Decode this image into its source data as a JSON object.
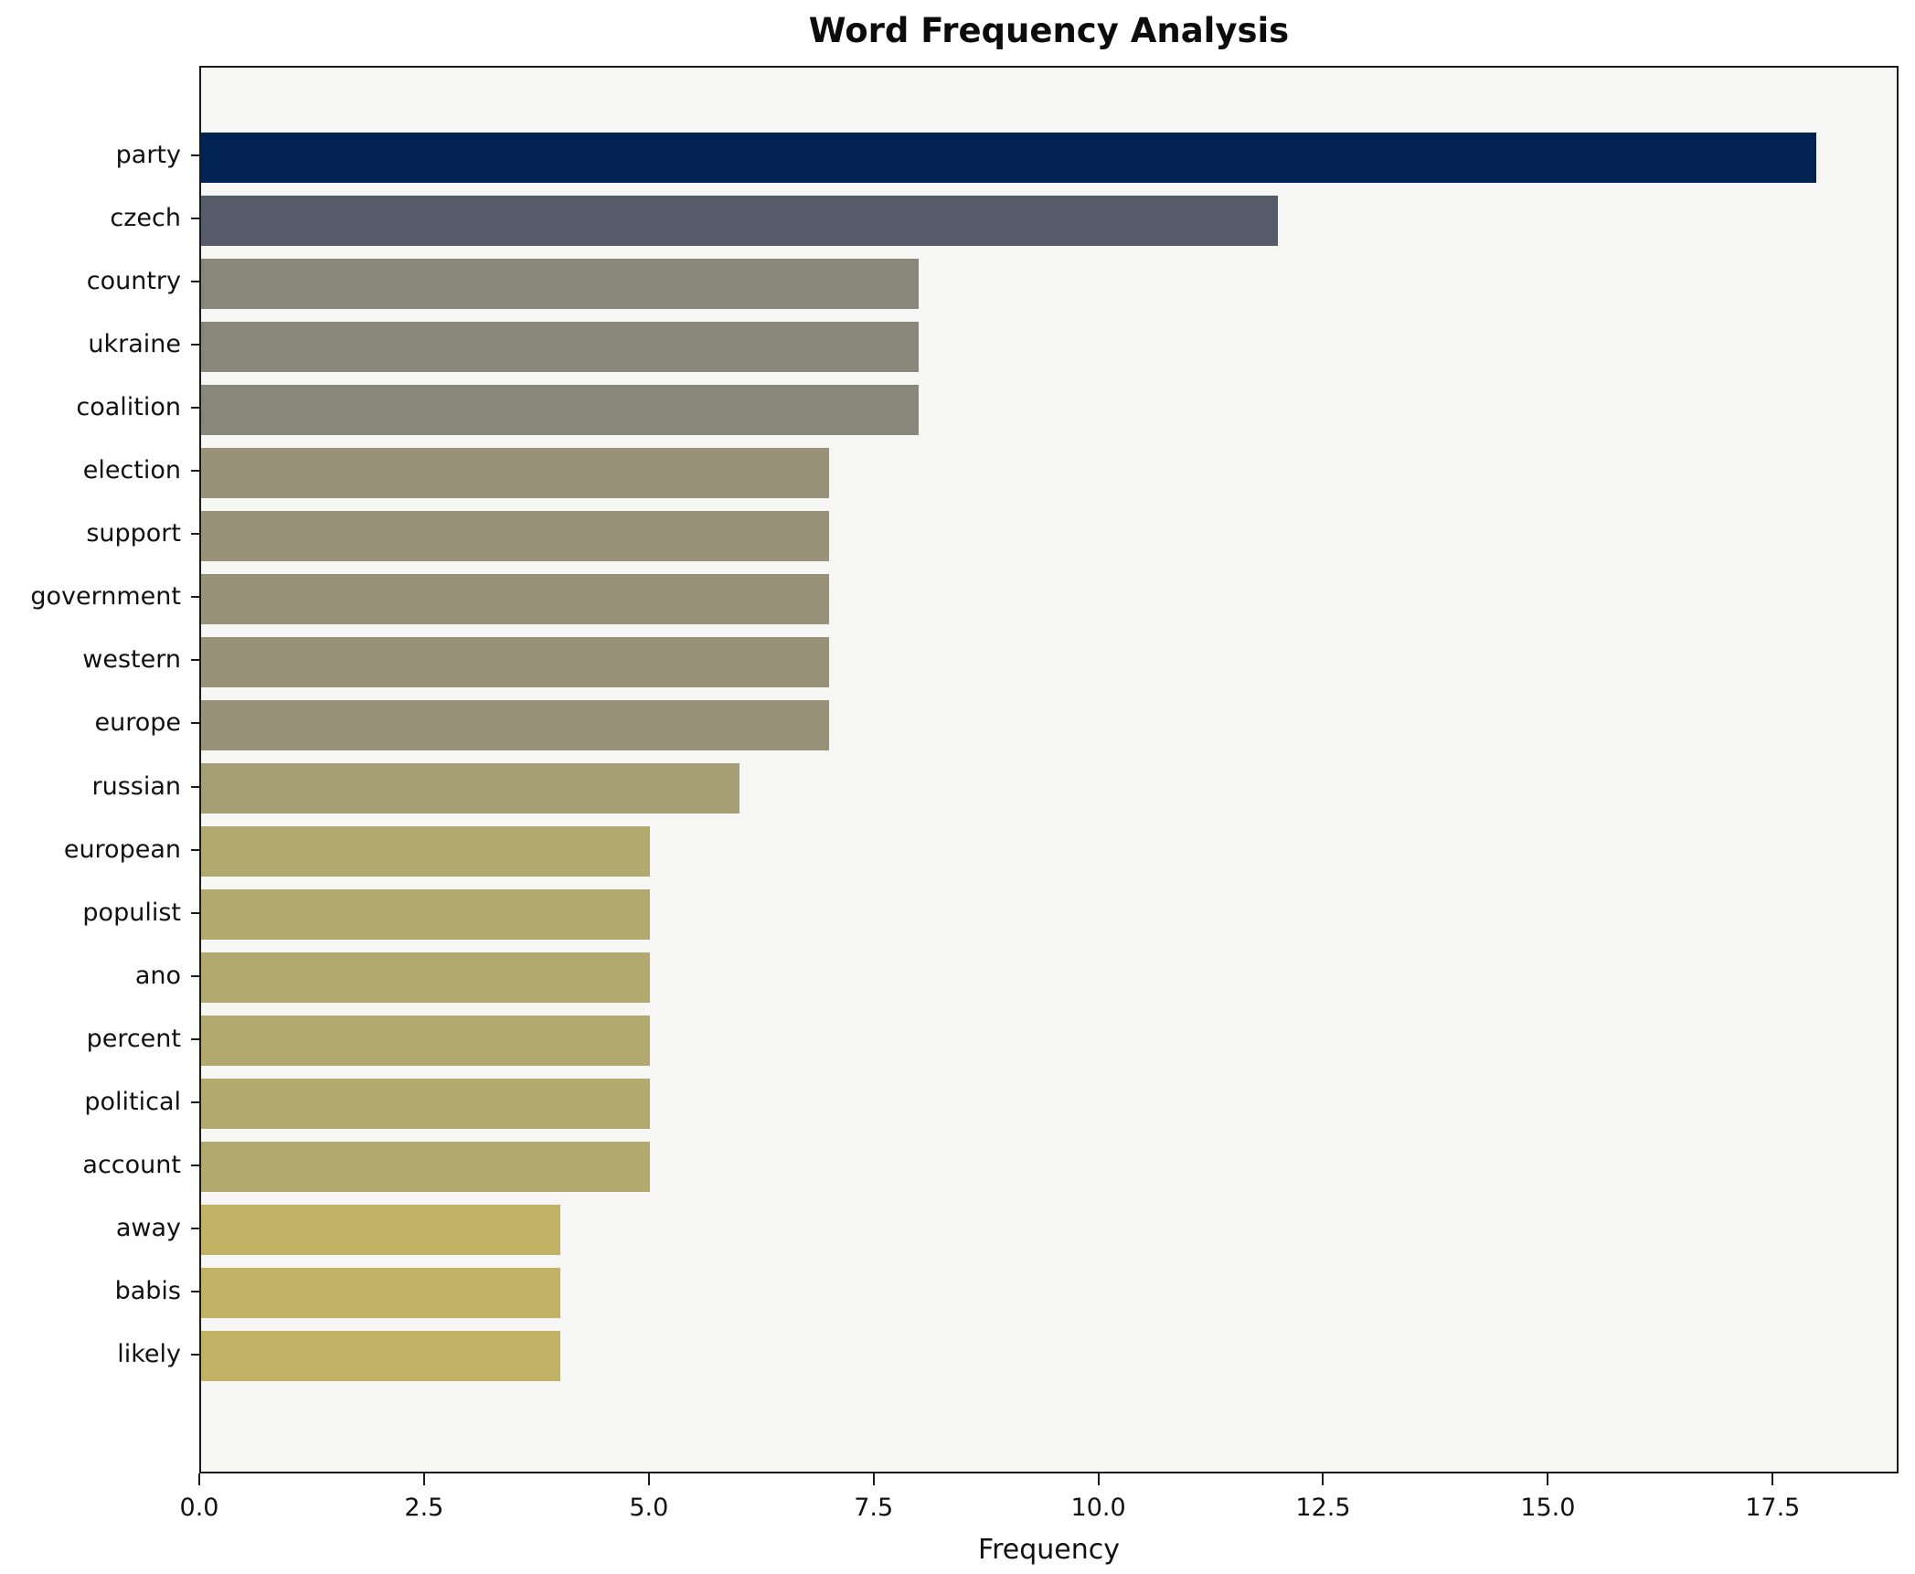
{
  "chart_data": {
    "type": "bar",
    "orientation": "horizontal",
    "title": "Word Frequency Analysis",
    "xlabel": "Frequency",
    "ylabel": "",
    "categories": [
      "party",
      "czech",
      "country",
      "ukraine",
      "coalition",
      "election",
      "support",
      "government",
      "western",
      "europe",
      "russian",
      "european",
      "populist",
      "ano",
      "percent",
      "political",
      "account",
      "away",
      "babis",
      "likely"
    ],
    "values": [
      18,
      12,
      8,
      8,
      8,
      7,
      7,
      7,
      7,
      7,
      6,
      5,
      5,
      5,
      5,
      5,
      5,
      4,
      4,
      4
    ],
    "bar_colors": [
      "#022251",
      "#575c6b",
      "#89867a",
      "#89867a",
      "#89867a",
      "#989378",
      "#989378",
      "#989378",
      "#989378",
      "#989378",
      "#a69e74",
      "#b2a96e",
      "#b2a96e",
      "#b2a96e",
      "#b2a96e",
      "#b2a96e",
      "#b2a96e",
      "#c2b266",
      "#c2b266",
      "#c2b266"
    ],
    "xlim": [
      0,
      18.9
    ],
    "x_tick_labels": [
      "0.0",
      "2.5",
      "5.0",
      "7.5",
      "10.0",
      "12.5",
      "15.0",
      "17.5"
    ],
    "x_tick_values": [
      0,
      2.5,
      5,
      7.5,
      10,
      12.5,
      15,
      17.5
    ],
    "grid": false,
    "legend": null
  },
  "colors": {
    "figure_bg": "#ffffff",
    "plot_bg": "#f6f6f4",
    "spine": "#1a1a1a",
    "bar_max": "#022251",
    "bar_min": "#c2b266"
  }
}
